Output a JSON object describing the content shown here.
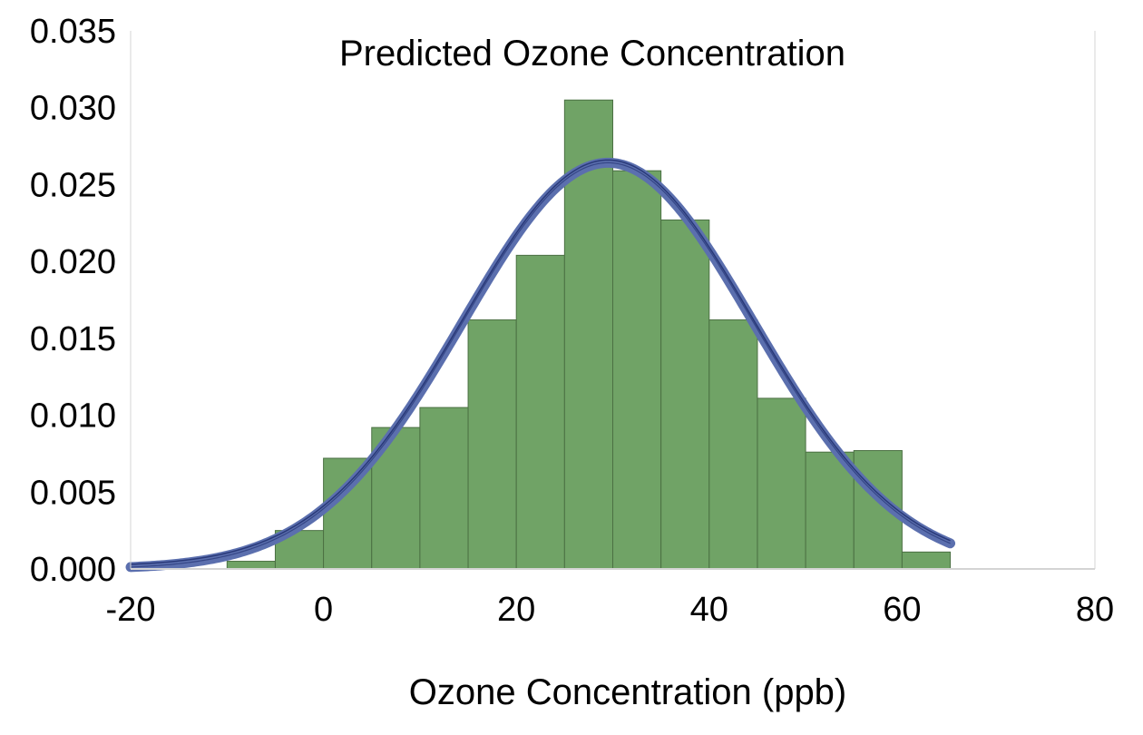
{
  "chart_data": {
    "type": "bar",
    "title": "Predicted Ozone Concentration",
    "xlabel": "Ozone Concentration (ppb)",
    "ylabel": "",
    "xlim": [
      -20,
      80
    ],
    "ylim": [
      0,
      0.035
    ],
    "x_ticks": [
      "-20",
      "0",
      "20",
      "40",
      "60",
      "80"
    ],
    "y_ticks": [
      "0.000",
      "0.005",
      "0.010",
      "0.015",
      "0.020",
      "0.025",
      "0.030",
      "0.035"
    ],
    "grid": false,
    "colors": {
      "bars": "#70a366",
      "bar_edge": "#4b7043",
      "curve": "#5b6fae",
      "curve_core": "#1d2c6b",
      "axis": "#d4d4d4"
    },
    "histogram": {
      "bins": [
        {
          "start": -10,
          "end": -5,
          "value": 0.0005
        },
        {
          "start": -5,
          "end": 0,
          "value": 0.0025
        },
        {
          "start": 0,
          "end": 5,
          "value": 0.0072
        },
        {
          "start": 5,
          "end": 10,
          "value": 0.0092
        },
        {
          "start": 10,
          "end": 15,
          "value": 0.0105
        },
        {
          "start": 15,
          "end": 20,
          "value": 0.0162
        },
        {
          "start": 20,
          "end": 25,
          "value": 0.0204
        },
        {
          "start": 25,
          "end": 30,
          "value": 0.0305
        },
        {
          "start": 30,
          "end": 35,
          "value": 0.0259
        },
        {
          "start": 35,
          "end": 40,
          "value": 0.0227
        },
        {
          "start": 40,
          "end": 45,
          "value": 0.0162
        },
        {
          "start": 45,
          "end": 50,
          "value": 0.0111
        },
        {
          "start": 50,
          "end": 55,
          "value": 0.0076
        },
        {
          "start": 55,
          "end": 60,
          "value": 0.0077
        },
        {
          "start": 60,
          "end": 65,
          "value": 0.0011
        }
      ]
    },
    "curve": {
      "type": "normal-pdf",
      "mean": 29.5,
      "sd": 15.1,
      "x_range": [
        -20,
        65
      ]
    }
  }
}
